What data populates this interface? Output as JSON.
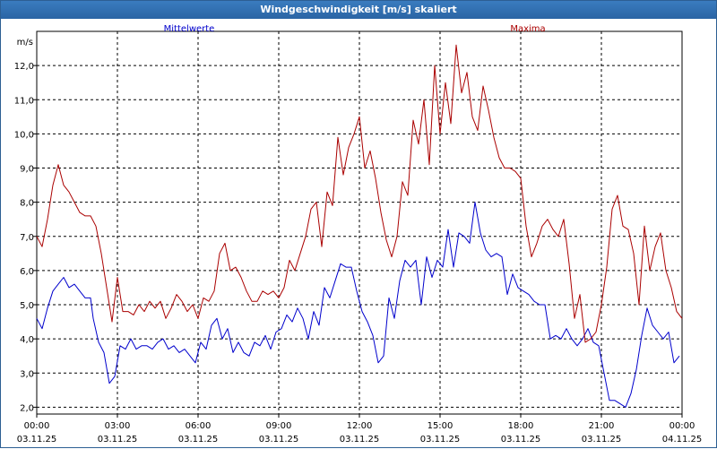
{
  "window": {
    "title": "Windgeschwindigkeit [m/s] skaliert"
  },
  "chart_data": {
    "type": "line",
    "ylabel": "m/s",
    "ylim": [
      1.8,
      13.0
    ],
    "yticks": [
      "2,0",
      "3,0",
      "4,0",
      "5,0",
      "6,0",
      "7,0",
      "8,0",
      "9,0",
      "10,0",
      "11,0",
      "12,0"
    ],
    "ytick_values": [
      2,
      3,
      4,
      5,
      6,
      7,
      8,
      9,
      10,
      11,
      12
    ],
    "xlim": [
      0,
      24
    ],
    "xticks": [
      {
        "time": "00:00",
        "date": "03.11.25",
        "hour": 0
      },
      {
        "time": "03:00",
        "date": "03.11.25",
        "hour": 3
      },
      {
        "time": "06:00",
        "date": "03.11.25",
        "hour": 6
      },
      {
        "time": "09:00",
        "date": "03.11.25",
        "hour": 9
      },
      {
        "time": "12:00",
        "date": "03.11.25",
        "hour": 12
      },
      {
        "time": "15:00",
        "date": "03.11.25",
        "hour": 15
      },
      {
        "time": "18:00",
        "date": "03.11.25",
        "hour": 18
      },
      {
        "time": "21:00",
        "date": "03.11.25",
        "hour": 21
      },
      {
        "time": "00:00",
        "date": "04.11.25",
        "hour": 24
      }
    ],
    "grid": true,
    "series": [
      {
        "name": "Mittelwerte",
        "color": "#0000cc",
        "points": [
          [
            0,
            4.6
          ],
          [
            0.2,
            4.3
          ],
          [
            0.4,
            4.9
          ],
          [
            0.6,
            5.4
          ],
          [
            0.8,
            5.6
          ],
          [
            1.0,
            5.8
          ],
          [
            1.2,
            5.5
          ],
          [
            1.4,
            5.6
          ],
          [
            1.6,
            5.4
          ],
          [
            1.8,
            5.2
          ],
          [
            2.0,
            5.2
          ],
          [
            2.1,
            4.6
          ],
          [
            2.3,
            3.9
          ],
          [
            2.5,
            3.6
          ],
          [
            2.7,
            2.7
          ],
          [
            2.9,
            2.9
          ],
          [
            3.1,
            3.8
          ],
          [
            3.3,
            3.7
          ],
          [
            3.5,
            4.0
          ],
          [
            3.7,
            3.7
          ],
          [
            3.9,
            3.8
          ],
          [
            4.1,
            3.8
          ],
          [
            4.3,
            3.7
          ],
          [
            4.5,
            3.9
          ],
          [
            4.7,
            4.0
          ],
          [
            4.9,
            3.7
          ],
          [
            5.1,
            3.8
          ],
          [
            5.3,
            3.6
          ],
          [
            5.5,
            3.7
          ],
          [
            5.7,
            3.5
          ],
          [
            5.9,
            3.3
          ],
          [
            6.1,
            3.9
          ],
          [
            6.3,
            3.7
          ],
          [
            6.5,
            4.4
          ],
          [
            6.7,
            4.6
          ],
          [
            6.9,
            4.0
          ],
          [
            7.1,
            4.3
          ],
          [
            7.3,
            3.6
          ],
          [
            7.5,
            3.9
          ],
          [
            7.7,
            3.6
          ],
          [
            7.9,
            3.5
          ],
          [
            8.1,
            3.9
          ],
          [
            8.3,
            3.8
          ],
          [
            8.5,
            4.1
          ],
          [
            8.7,
            3.7
          ],
          [
            8.9,
            4.2
          ],
          [
            9.1,
            4.3
          ],
          [
            9.3,
            4.7
          ],
          [
            9.5,
            4.5
          ],
          [
            9.7,
            4.9
          ],
          [
            9.9,
            4.6
          ],
          [
            10.1,
            4.0
          ],
          [
            10.3,
            4.8
          ],
          [
            10.5,
            4.4
          ],
          [
            10.7,
            5.5
          ],
          [
            10.9,
            5.2
          ],
          [
            11.1,
            5.7
          ],
          [
            11.3,
            6.2
          ],
          [
            11.5,
            6.1
          ],
          [
            11.7,
            6.1
          ],
          [
            11.9,
            5.4
          ],
          [
            12.1,
            4.8
          ],
          [
            12.3,
            4.5
          ],
          [
            12.5,
            4.1
          ],
          [
            12.7,
            3.3
          ],
          [
            12.9,
            3.5
          ],
          [
            13.1,
            5.2
          ],
          [
            13.3,
            4.6
          ],
          [
            13.5,
            5.7
          ],
          [
            13.7,
            6.3
          ],
          [
            13.9,
            6.1
          ],
          [
            14.1,
            6.3
          ],
          [
            14.3,
            5.0
          ],
          [
            14.5,
            6.4
          ],
          [
            14.7,
            5.8
          ],
          [
            14.9,
            6.3
          ],
          [
            15.1,
            6.1
          ],
          [
            15.3,
            7.2
          ],
          [
            15.5,
            6.1
          ],
          [
            15.7,
            7.1
          ],
          [
            15.9,
            7.0
          ],
          [
            16.1,
            6.8
          ],
          [
            16.3,
            8.0
          ],
          [
            16.5,
            7.1
          ],
          [
            16.7,
            6.6
          ],
          [
            16.9,
            6.4
          ],
          [
            17.1,
            6.5
          ],
          [
            17.3,
            6.4
          ],
          [
            17.5,
            5.3
          ],
          [
            17.7,
            5.9
          ],
          [
            17.9,
            5.5
          ],
          [
            18.1,
            5.4
          ],
          [
            18.3,
            5.3
          ],
          [
            18.5,
            5.1
          ],
          [
            18.7,
            5.0
          ],
          [
            18.9,
            5.0
          ],
          [
            19.1,
            4.0
          ],
          [
            19.3,
            4.1
          ],
          [
            19.5,
            4.0
          ],
          [
            19.7,
            4.3
          ],
          [
            19.9,
            4.0
          ],
          [
            20.1,
            3.8
          ],
          [
            20.3,
            4.0
          ],
          [
            20.5,
            4.3
          ],
          [
            20.7,
            3.9
          ],
          [
            20.9,
            3.8
          ],
          [
            21.1,
            3.0
          ],
          [
            21.3,
            2.2
          ],
          [
            21.5,
            2.2
          ],
          [
            21.7,
            2.1
          ],
          [
            21.9,
            2.0
          ],
          [
            22.1,
            2.4
          ],
          [
            22.3,
            3.1
          ],
          [
            22.5,
            4.1
          ],
          [
            22.7,
            4.9
          ],
          [
            22.9,
            4.4
          ],
          [
            23.1,
            4.2
          ],
          [
            23.3,
            4.0
          ],
          [
            23.5,
            4.2
          ],
          [
            23.7,
            3.3
          ],
          [
            23.9,
            3.5
          ]
        ]
      },
      {
        "name": "Maxima",
        "color": "#aa0000",
        "points": [
          [
            0,
            7.0
          ],
          [
            0.2,
            6.7
          ],
          [
            0.4,
            7.5
          ],
          [
            0.6,
            8.5
          ],
          [
            0.8,
            9.1
          ],
          [
            1.0,
            8.5
          ],
          [
            1.2,
            8.3
          ],
          [
            1.4,
            8.0
          ],
          [
            1.6,
            7.7
          ],
          [
            1.8,
            7.6
          ],
          [
            2.0,
            7.6
          ],
          [
            2.2,
            7.3
          ],
          [
            2.4,
            6.5
          ],
          [
            2.6,
            5.5
          ],
          [
            2.8,
            4.5
          ],
          [
            3.0,
            5.8
          ],
          [
            3.2,
            4.8
          ],
          [
            3.4,
            4.8
          ],
          [
            3.6,
            4.7
          ],
          [
            3.8,
            5.0
          ],
          [
            4.0,
            4.8
          ],
          [
            4.2,
            5.1
          ],
          [
            4.4,
            4.9
          ],
          [
            4.6,
            5.1
          ],
          [
            4.8,
            4.6
          ],
          [
            5.0,
            4.9
          ],
          [
            5.2,
            5.3
          ],
          [
            5.4,
            5.1
          ],
          [
            5.6,
            4.8
          ],
          [
            5.8,
            5.0
          ],
          [
            6.0,
            4.6
          ],
          [
            6.2,
            5.2
          ],
          [
            6.4,
            5.1
          ],
          [
            6.6,
            5.4
          ],
          [
            6.8,
            6.5
          ],
          [
            7.0,
            6.8
          ],
          [
            7.2,
            6.0
          ],
          [
            7.4,
            6.1
          ],
          [
            7.6,
            5.8
          ],
          [
            7.8,
            5.4
          ],
          [
            8.0,
            5.1
          ],
          [
            8.2,
            5.1
          ],
          [
            8.4,
            5.4
          ],
          [
            8.6,
            5.3
          ],
          [
            8.8,
            5.4
          ],
          [
            9.0,
            5.2
          ],
          [
            9.2,
            5.5
          ],
          [
            9.4,
            6.3
          ],
          [
            9.6,
            6.0
          ],
          [
            9.8,
            6.5
          ],
          [
            10.0,
            7.0
          ],
          [
            10.2,
            7.8
          ],
          [
            10.4,
            8.0
          ],
          [
            10.6,
            6.7
          ],
          [
            10.8,
            8.3
          ],
          [
            11.0,
            7.9
          ],
          [
            11.2,
            9.9
          ],
          [
            11.4,
            8.8
          ],
          [
            11.6,
            9.6
          ],
          [
            11.8,
            10.0
          ],
          [
            12.0,
            10.5
          ],
          [
            12.2,
            9.0
          ],
          [
            12.4,
            9.5
          ],
          [
            12.6,
            8.7
          ],
          [
            12.8,
            7.7
          ],
          [
            13.0,
            6.9
          ],
          [
            13.2,
            6.4
          ],
          [
            13.4,
            7.0
          ],
          [
            13.6,
            8.6
          ],
          [
            13.8,
            8.2
          ],
          [
            14.0,
            10.4
          ],
          [
            14.2,
            9.7
          ],
          [
            14.4,
            11.0
          ],
          [
            14.6,
            9.1
          ],
          [
            14.8,
            12.0
          ],
          [
            15.0,
            10.0
          ],
          [
            15.2,
            11.5
          ],
          [
            15.4,
            10.3
          ],
          [
            15.6,
            12.6
          ],
          [
            15.8,
            11.2
          ],
          [
            16.0,
            11.8
          ],
          [
            16.2,
            10.5
          ],
          [
            16.4,
            10.1
          ],
          [
            16.6,
            11.4
          ],
          [
            16.8,
            10.7
          ],
          [
            17.0,
            9.9
          ],
          [
            17.2,
            9.3
          ],
          [
            17.4,
            9.0
          ],
          [
            17.6,
            9.0
          ],
          [
            17.8,
            8.9
          ],
          [
            18.0,
            8.7
          ],
          [
            18.2,
            7.3
          ],
          [
            18.4,
            6.4
          ],
          [
            18.6,
            6.8
          ],
          [
            18.8,
            7.3
          ],
          [
            19.0,
            7.5
          ],
          [
            19.2,
            7.2
          ],
          [
            19.4,
            7.0
          ],
          [
            19.6,
            7.5
          ],
          [
            19.8,
            6.2
          ],
          [
            20.0,
            4.6
          ],
          [
            20.2,
            5.3
          ],
          [
            20.4,
            3.9
          ],
          [
            20.6,
            4.0
          ],
          [
            20.8,
            4.2
          ],
          [
            21.0,
            5.0
          ],
          [
            21.2,
            6.1
          ],
          [
            21.4,
            7.8
          ],
          [
            21.6,
            8.2
          ],
          [
            21.8,
            7.3
          ],
          [
            22.0,
            7.2
          ],
          [
            22.2,
            6.5
          ],
          [
            22.4,
            5.0
          ],
          [
            22.6,
            7.3
          ],
          [
            22.8,
            6.0
          ],
          [
            23.0,
            6.7
          ],
          [
            23.2,
            7.1
          ],
          [
            23.4,
            6.0
          ],
          [
            23.6,
            5.5
          ],
          [
            23.8,
            4.8
          ],
          [
            24.0,
            4.6
          ]
        ]
      }
    ]
  }
}
